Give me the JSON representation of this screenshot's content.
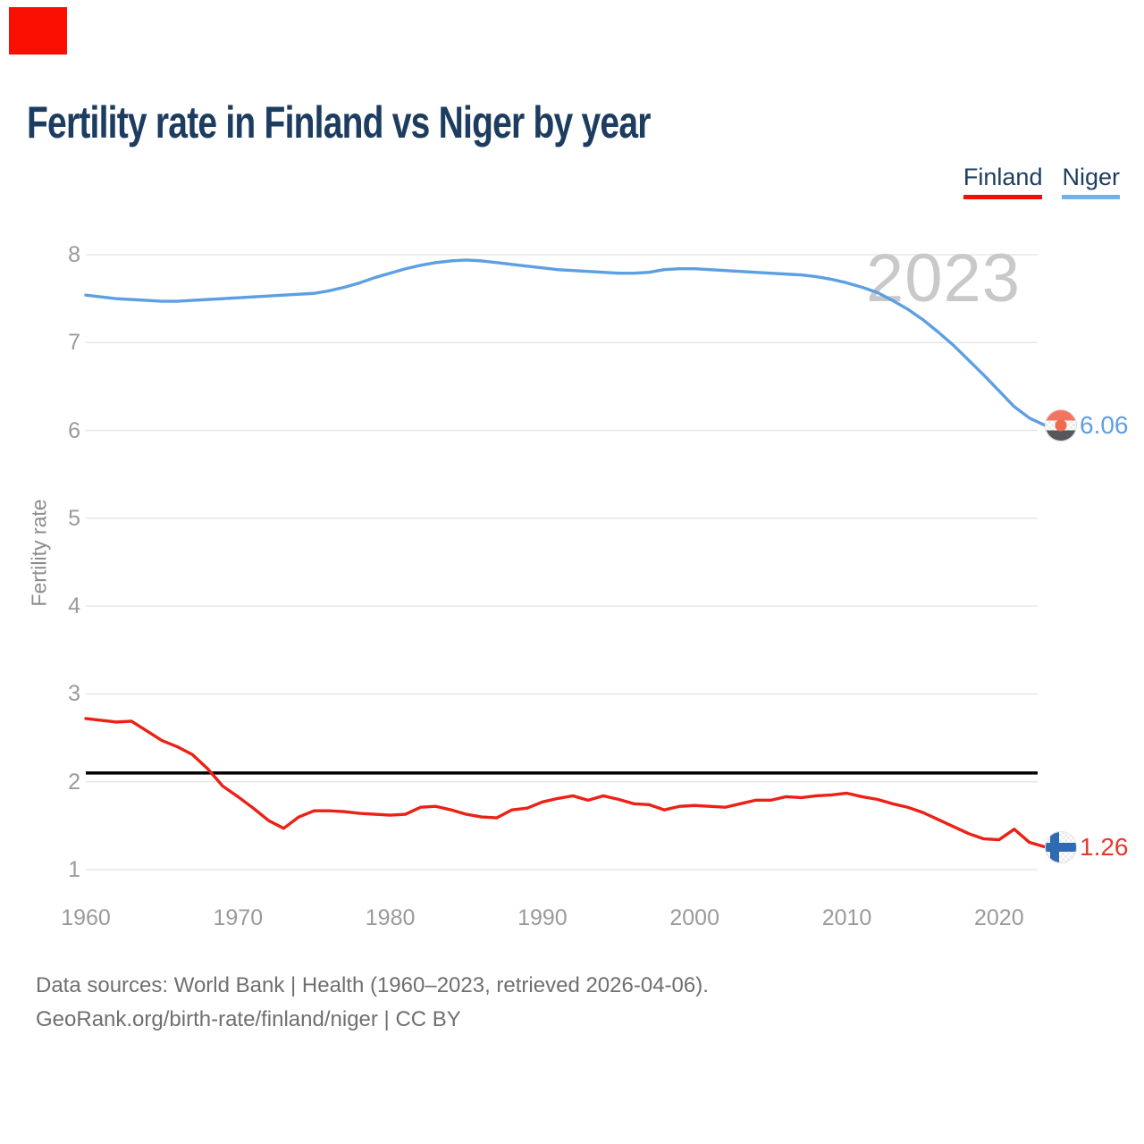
{
  "marker": {
    "color": "#fc0f03"
  },
  "header": {
    "title": "Fertility rate in Finland vs Niger by year"
  },
  "legend": {
    "items": [
      {
        "label": "Finland",
        "color": "#f20c0c"
      },
      {
        "label": "Niger",
        "color": "#74b0e8"
      }
    ]
  },
  "watermark": "2023",
  "footer": {
    "line1": "Data sources: World Bank | Health (1960–2023, retrieved 2026-04-06).",
    "line2": "GeoRank.org/birth-rate/finland/niger | CC BY"
  },
  "chart_data": {
    "type": "line",
    "title": "Fertility rate in Finland vs Niger by year",
    "xlabel": "",
    "ylabel": "Fertility rate",
    "ylim": [
      1,
      8
    ],
    "xlim": [
      1960,
      2023
    ],
    "y_ticks": [
      8,
      7,
      6,
      5,
      4,
      3,
      2,
      1
    ],
    "x_ticks": [
      1960,
      1970,
      1980,
      1990,
      2000,
      2010,
      2020
    ],
    "grid": "horizontal",
    "legend_position": "top-right",
    "reference_line": {
      "value": 2.1,
      "color": "#000000"
    },
    "years": [
      1960,
      1961,
      1962,
      1963,
      1964,
      1965,
      1966,
      1967,
      1968,
      1969,
      1970,
      1971,
      1972,
      1973,
      1974,
      1975,
      1976,
      1977,
      1978,
      1979,
      1980,
      1981,
      1982,
      1983,
      1984,
      1985,
      1986,
      1987,
      1988,
      1989,
      1990,
      1991,
      1992,
      1993,
      1994,
      1995,
      1996,
      1997,
      1998,
      1999,
      2000,
      2001,
      2002,
      2003,
      2004,
      2005,
      2006,
      2007,
      2008,
      2009,
      2010,
      2011,
      2012,
      2013,
      2014,
      2015,
      2016,
      2017,
      2018,
      2019,
      2020,
      2021,
      2022,
      2023
    ],
    "series": [
      {
        "name": "Niger",
        "color": "#5d9fe3",
        "end_label": "6.06",
        "values": [
          7.54,
          7.52,
          7.5,
          7.49,
          7.48,
          7.47,
          7.47,
          7.48,
          7.49,
          7.5,
          7.51,
          7.52,
          7.53,
          7.54,
          7.55,
          7.56,
          7.59,
          7.63,
          7.68,
          7.74,
          7.79,
          7.84,
          7.88,
          7.91,
          7.93,
          7.94,
          7.93,
          7.91,
          7.89,
          7.87,
          7.85,
          7.83,
          7.82,
          7.81,
          7.8,
          7.79,
          7.79,
          7.8,
          7.83,
          7.84,
          7.84,
          7.83,
          7.82,
          7.81,
          7.8,
          7.79,
          7.78,
          7.77,
          7.75,
          7.72,
          7.68,
          7.63,
          7.57,
          7.48,
          7.38,
          7.26,
          7.12,
          6.97,
          6.8,
          6.63,
          6.45,
          6.27,
          6.14,
          6.06
        ]
      },
      {
        "name": "Finland",
        "color": "#ec2115",
        "end_label": "1.26",
        "values": [
          2.72,
          2.7,
          2.68,
          2.69,
          2.58,
          2.47,
          2.4,
          2.31,
          2.15,
          1.95,
          1.83,
          1.7,
          1.56,
          1.47,
          1.6,
          1.67,
          1.67,
          1.66,
          1.64,
          1.63,
          1.62,
          1.63,
          1.71,
          1.72,
          1.68,
          1.63,
          1.6,
          1.59,
          1.68,
          1.7,
          1.77,
          1.81,
          1.84,
          1.79,
          1.84,
          1.8,
          1.75,
          1.74,
          1.68,
          1.72,
          1.73,
          1.72,
          1.71,
          1.75,
          1.79,
          1.79,
          1.83,
          1.82,
          1.84,
          1.85,
          1.87,
          1.83,
          1.8,
          1.75,
          1.71,
          1.65,
          1.57,
          1.49,
          1.41,
          1.35,
          1.34,
          1.46,
          1.31,
          1.26
        ]
      }
    ]
  }
}
